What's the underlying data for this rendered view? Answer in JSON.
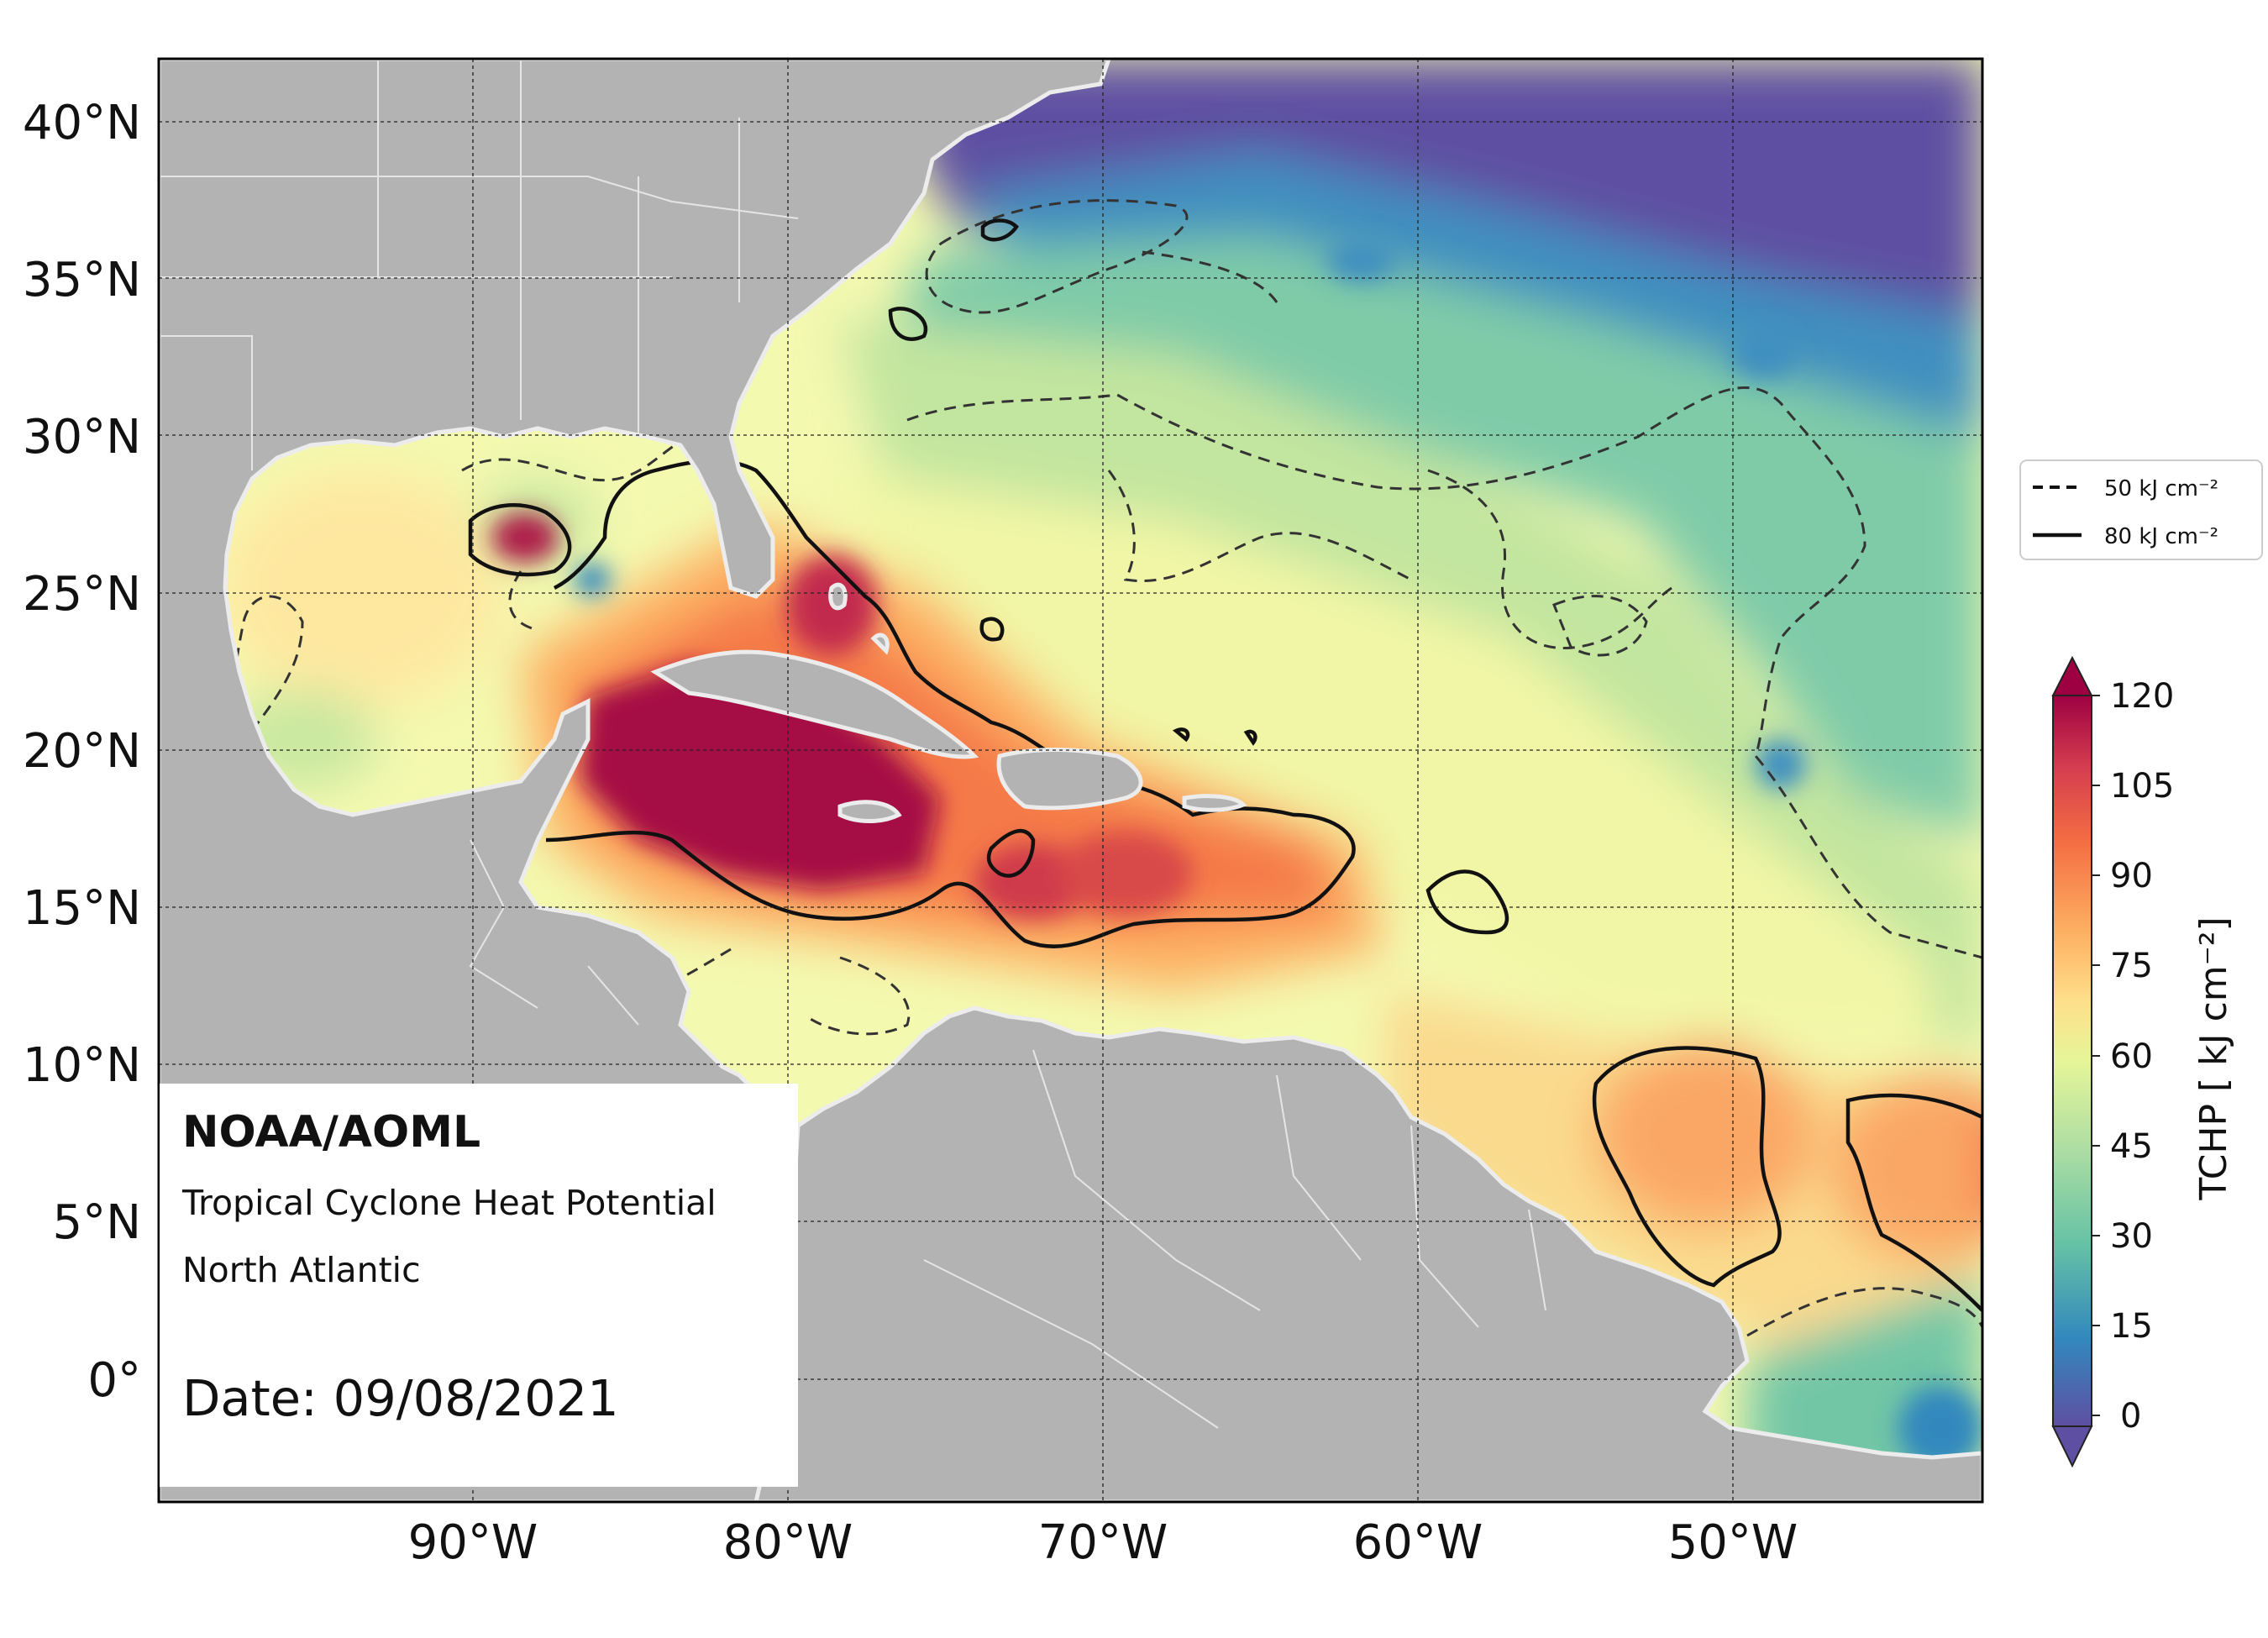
{
  "map": {
    "lat_labels": [
      "40°N",
      "35°N",
      "30°N",
      "25°N",
      "20°N",
      "15°N",
      "10°N",
      "5°N",
      "0°"
    ],
    "lon_labels": [
      "90°W",
      "80°W",
      "70°W",
      "60°W",
      "50°W"
    ]
  },
  "legend": {
    "dashed_label": "50 kJ cm⁻²",
    "solid_label": "80 kJ cm⁻²"
  },
  "colorbar": {
    "ticks": [
      "120",
      "105",
      "90",
      "75",
      "60",
      "45",
      "30",
      "15",
      "0"
    ],
    "label": "TCHP [ kJ cm⁻²]"
  },
  "info": {
    "org": "NOAA/AOML",
    "product": "Tropical Cyclone Heat Potential",
    "region": "North Atlantic",
    "date": "Date: 09/08/2021"
  },
  "colors": {
    "land": "#b3b3b3",
    "coast": "#eeeeee",
    "cold": "#5c4fa2",
    "hot": "#9e0142"
  }
}
